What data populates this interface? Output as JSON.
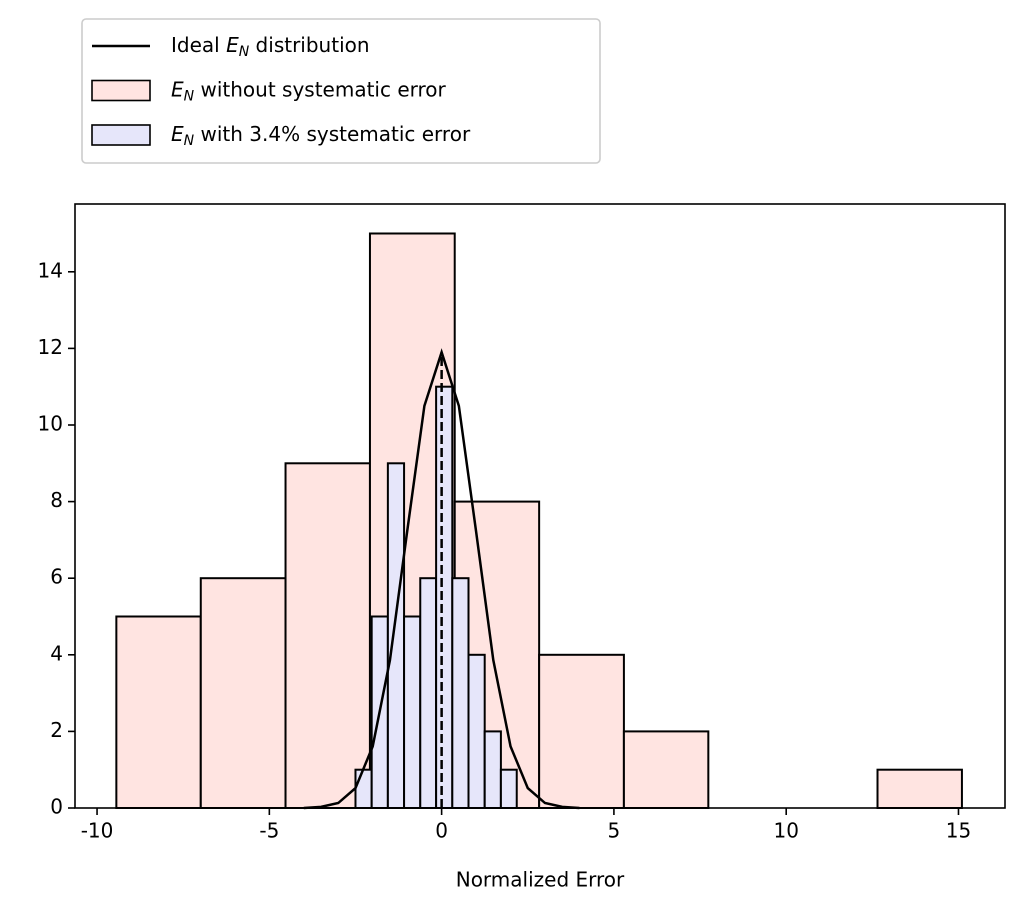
{
  "chart_data": {
    "type": "histogram",
    "xlabel": "Normalized Error",
    "xlim": [
      -10.64,
      16.35
    ],
    "ylim": [
      0,
      15.77
    ],
    "xticks": [
      -10,
      -5,
      0,
      5,
      10,
      15
    ],
    "yticks": [
      0,
      2,
      4,
      6,
      8,
      10,
      12,
      14
    ],
    "legend": "upper left",
    "series": [
      {
        "name": "Ideal E_N distribution",
        "type": "line",
        "color": "#000000",
        "x": [
          -4,
          -3.5,
          -3,
          -2.5,
          -2,
          -1.5,
          -1,
          -0.5,
          0,
          0.5,
          1,
          1.5,
          2,
          2.5,
          3,
          3.5,
          4
        ],
        "values": [
          0.0,
          0.03,
          0.13,
          0.52,
          1.61,
          3.86,
          7.22,
          10.5,
          11.9,
          10.5,
          7.22,
          3.86,
          1.61,
          0.52,
          0.13,
          0.03,
          0.0
        ]
      },
      {
        "name": "E_N without systematic error",
        "type": "histogram",
        "color": "#ffe4e1",
        "bins": [
          -9.44,
          -6.99,
          -4.53,
          -2.08,
          0.38,
          2.83,
          5.29,
          7.74,
          10.19,
          12.65,
          15.1
        ],
        "values": [
          5,
          6,
          9,
          15,
          8,
          4,
          2,
          0,
          0,
          1
        ]
      },
      {
        "name": "E_N with 3.4% systematic error",
        "type": "histogram",
        "color": "#e6e6fa",
        "bins": [
          -2.5,
          -2.03,
          -1.56,
          -1.09,
          -0.62,
          -0.16,
          0.31,
          0.78,
          1.25,
          1.72,
          2.18
        ],
        "values": [
          1,
          5,
          9,
          5,
          6,
          11,
          6,
          4,
          2,
          1
        ]
      }
    ],
    "reference_line": {
      "x": 0,
      "ymax": 11.9,
      "style": "dashed",
      "color": "#000000"
    }
  }
}
